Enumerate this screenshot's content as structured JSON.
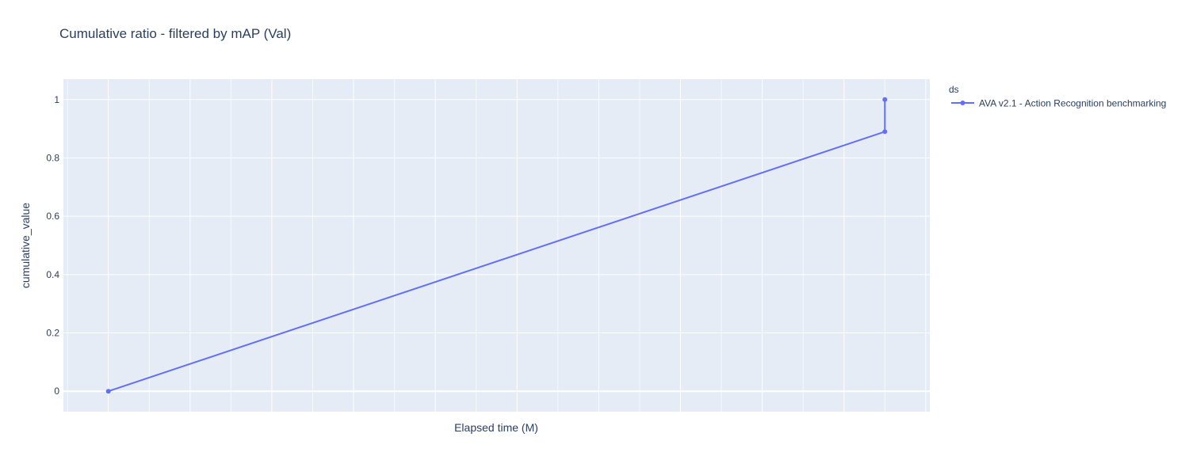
{
  "chart_data": {
    "type": "line",
    "title": "Cumulative ratio - filtered by mAP (Val)",
    "xlabel": "Elapsed time (M)",
    "ylabel": "cumulative_value",
    "ylim": [
      -0.07,
      1.07
    ],
    "yticks": [
      0,
      0.2,
      0.4,
      0.6,
      0.8,
      1
    ],
    "ytick_labels": [
      "0",
      "0.2",
      "0.4",
      "0.6",
      "0.8",
      "1"
    ],
    "x_tick_labels_shown": false,
    "grid": true,
    "legend": {
      "title": "ds",
      "placement": "right"
    },
    "series": [
      {
        "name": "AVA v2.1 - Action Recognition benchmarking",
        "color": "#636efa",
        "x": [
          0,
          9.5,
          9.5
        ],
        "y": [
          0,
          0.89,
          1
        ]
      }
    ],
    "xlim": [
      -0.55,
      10.05
    ],
    "colors": {
      "plot_bg": "#e5ecf6",
      "grid": "#ffffff",
      "text": "#2a3f5f"
    }
  }
}
